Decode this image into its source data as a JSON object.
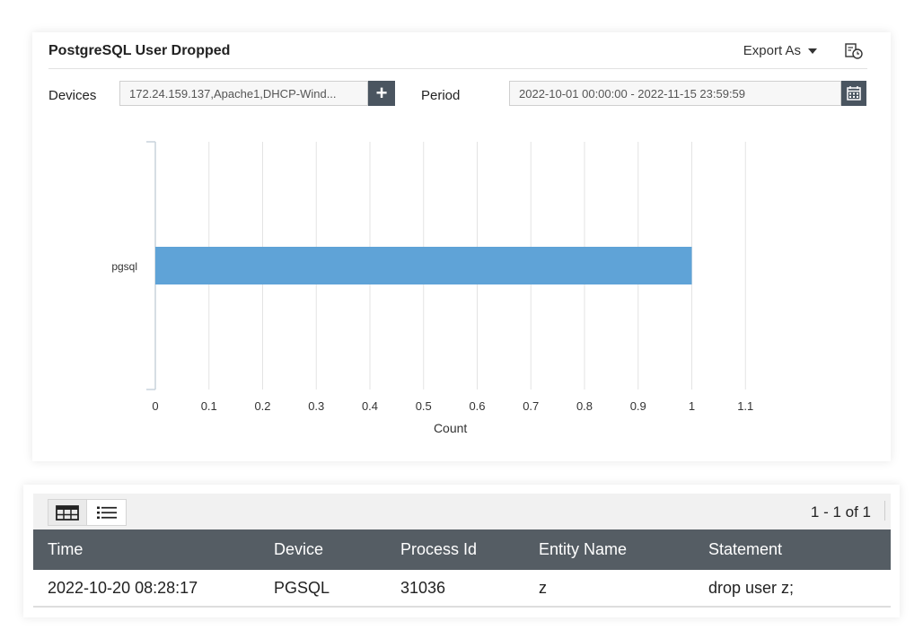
{
  "report": {
    "title": "PostgreSQL User Dropped",
    "export_label": "Export As",
    "devices_label": "Devices",
    "devices_value": "172.24.159.137,Apache1,DHCP-Wind...",
    "add_label": "+",
    "period_label": "Period",
    "period_value": "2022-10-01 00:00:00 - 2022-11-15 23:59:59"
  },
  "chart_data": {
    "type": "bar",
    "orientation": "horizontal",
    "categories": [
      "pgsql"
    ],
    "values": [
      1
    ],
    "xlabel": "Count",
    "xlim": [
      0,
      1.1
    ],
    "xticks": [
      "0",
      "0.1",
      "0.2",
      "0.3",
      "0.4",
      "0.5",
      "0.6",
      "0.7",
      "0.8",
      "0.9",
      "1",
      "1.1"
    ],
    "grid": true,
    "bar_color": "#5fa3d7"
  },
  "table": {
    "pager": "1 - 1 of 1",
    "columns": [
      "Time",
      "Device",
      "Process Id",
      "Entity Name",
      "Statement"
    ],
    "rows": [
      [
        "2022-10-20 08:28:17",
        "PGSQL",
        "31036",
        "z",
        "drop user z;"
      ]
    ]
  },
  "colors": {
    "header_bg": "#555d64",
    "button_bg": "#4a5560",
    "accent_bar": "#5fa3d7"
  }
}
